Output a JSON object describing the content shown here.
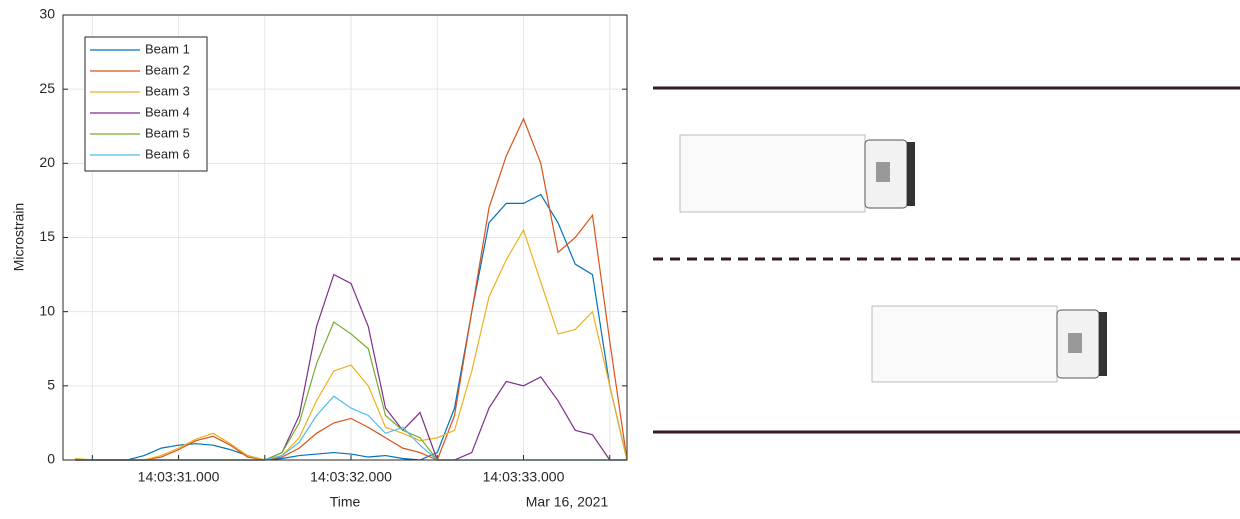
{
  "chart_data": {
    "type": "line",
    "xlabel": "Time",
    "ylabel": "Microstrain",
    "date_label": "Mar 16, 2021",
    "x": [
      30.4,
      30.5,
      30.6,
      30.7,
      30.8,
      30.9,
      31.0,
      31.1,
      31.2,
      31.3,
      31.4,
      31.5,
      31.6,
      31.7,
      31.8,
      31.9,
      32.0,
      32.1,
      32.2,
      32.3,
      32.4,
      32.5,
      32.6,
      32.7,
      32.8,
      32.9,
      33.0,
      33.1,
      33.2,
      33.3,
      33.4,
      33.5,
      33.6
    ],
    "series": [
      {
        "name": "Beam 1",
        "color": "#0072BD",
        "values": [
          0,
          0,
          0,
          0,
          0.3,
          0.8,
          1.0,
          1.1,
          1.0,
          0.7,
          0.3,
          0,
          0.1,
          0.3,
          0.4,
          0.5,
          0.4,
          0.2,
          0.3,
          0.1,
          0,
          0.5,
          3.5,
          10,
          16,
          17.3,
          17.3,
          17.9,
          16,
          13.2,
          12.5,
          5,
          0
        ]
      },
      {
        "name": "Beam 2",
        "color": "#D95319",
        "values": [
          0,
          0,
          0,
          0,
          0,
          0.2,
          0.7,
          1.3,
          1.6,
          1.0,
          0.2,
          0,
          0.2,
          0.8,
          1.8,
          2.5,
          2.8,
          2.2,
          1.5,
          0.8,
          0.5,
          0,
          3,
          10,
          17,
          20.5,
          23,
          20,
          14,
          15,
          16.5,
          8,
          0
        ]
      },
      {
        "name": "Beam 3",
        "color": "#EDB120",
        "values": [
          0.1,
          0,
          0,
          0,
          0,
          0.3,
          0.8,
          1.4,
          1.8,
          1.1,
          0.3,
          0,
          0.3,
          1.5,
          4,
          6,
          6.4,
          5,
          2.2,
          1.8,
          1.3,
          1.5,
          2,
          6,
          11,
          13.5,
          15.5,
          12,
          8.5,
          8.8,
          10,
          5,
          0
        ]
      },
      {
        "name": "Beam 4",
        "color": "#7E2F8E",
        "values": [
          0,
          0,
          0,
          0,
          0,
          0,
          0,
          0,
          0,
          0,
          0,
          0,
          0.5,
          3,
          9,
          12.5,
          11.9,
          9,
          3.5,
          2,
          3.2,
          0,
          0,
          0.5,
          3.5,
          5.3,
          5,
          5.6,
          4,
          2,
          1.7,
          0,
          0
        ]
      },
      {
        "name": "Beam 5",
        "color": "#77AC30",
        "values": [
          0,
          0,
          0,
          0,
          0,
          0,
          0,
          0,
          0,
          0,
          0,
          0,
          0.5,
          2.5,
          6.5,
          9.3,
          8.5,
          7.5,
          3,
          2,
          1.5,
          0,
          0,
          0,
          0,
          0,
          0,
          0,
          0,
          0,
          0,
          0,
          0
        ]
      },
      {
        "name": "Beam 6",
        "color": "#4DBEEE",
        "values": [
          0,
          0,
          0,
          0,
          0,
          0,
          0,
          0,
          0,
          0,
          0,
          0,
          0.3,
          1.2,
          3,
          4.3,
          3.5,
          3,
          1.8,
          2.2,
          1,
          0,
          0,
          0,
          0,
          0,
          0,
          0,
          0,
          0,
          0,
          0,
          0
        ]
      }
    ],
    "xlim": [
      30.33,
      33.6
    ],
    "ylim": [
      0,
      30
    ],
    "xticks": [
      {
        "value": 31,
        "label": "14:03:31.000"
      },
      {
        "value": 32,
        "label": "14:03:32.000"
      },
      {
        "value": 33,
        "label": "14:03:33.000"
      }
    ],
    "xminorticks": [
      30.5,
      31.5,
      32.5,
      33.5
    ],
    "yticks": [
      0,
      5,
      10,
      15,
      20,
      25,
      30
    ],
    "grid": true,
    "legend": "upper-left"
  }
}
